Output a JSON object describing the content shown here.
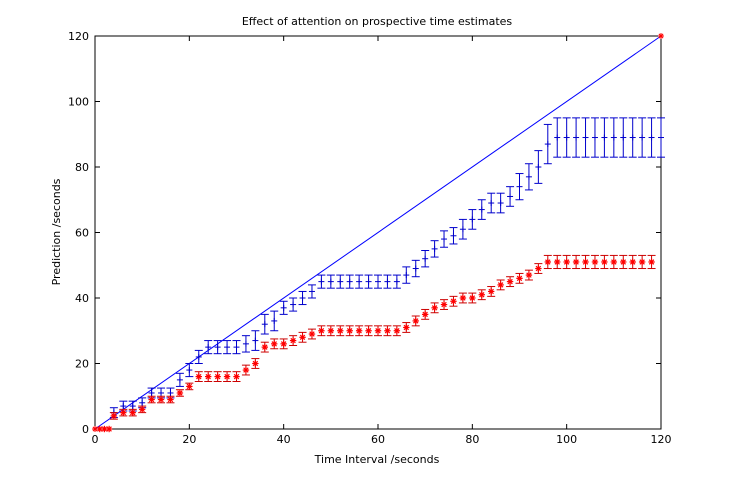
{
  "chart_data": {
    "type": "line",
    "title": "Effect of attention on prospective time estimates",
    "xlabel": "Time Interval /seconds",
    "ylabel": "Prediction /seconds",
    "xlim": [
      0,
      120
    ],
    "ylim": [
      0,
      120
    ],
    "xticks": [
      "0",
      "20",
      "40",
      "60",
      "80",
      "100",
      "120"
    ],
    "yticks": [
      "0",
      "20",
      "40",
      "60",
      "80",
      "100",
      "120"
    ],
    "grid": false,
    "reference_line": {
      "x": [
        0,
        120
      ],
      "y": [
        0,
        120
      ],
      "color": "#0000ff",
      "marker_color": "#ff0000"
    },
    "series": [
      {
        "color": "#0000cc",
        "marker": "+",
        "x": [
          2,
          4,
          6,
          8,
          10,
          12,
          14,
          16,
          18,
          20,
          22,
          24,
          26,
          28,
          30,
          32,
          34,
          36,
          38,
          40,
          42,
          44,
          46,
          48,
          50,
          52,
          54,
          56,
          58,
          60,
          62,
          64,
          66,
          68,
          70,
          72,
          74,
          76,
          78,
          80,
          82,
          84,
          86,
          88,
          90,
          92,
          94,
          96,
          98,
          100,
          102,
          104,
          106,
          108,
          110,
          112,
          114,
          116,
          118,
          120
        ],
        "y": [
          0,
          5,
          7,
          7,
          8,
          11,
          11,
          11,
          15,
          18,
          22,
          25,
          25,
          25,
          25,
          26,
          27,
          32,
          33,
          37,
          38,
          40,
          42,
          45,
          45,
          45,
          45,
          45,
          45,
          45,
          45,
          45,
          47,
          49,
          52,
          55,
          58,
          59,
          61,
          64,
          67,
          69,
          69,
          71,
          74,
          77,
          80,
          87,
          89,
          89,
          89,
          89,
          89,
          89,
          89,
          89,
          89,
          89,
          89,
          89
        ],
        "err": [
          0,
          1.5,
          1.5,
          1.5,
          1.5,
          1.5,
          1.5,
          1.5,
          2,
          2,
          2,
          2,
          2,
          2,
          2,
          2.5,
          3,
          3,
          3,
          2,
          2,
          2,
          2,
          2,
          2,
          2,
          2,
          2,
          2,
          2,
          2,
          2,
          2.5,
          2.5,
          2.5,
          2.5,
          2.5,
          2.5,
          3,
          3,
          3,
          3,
          3,
          3,
          4,
          4,
          5,
          6,
          6,
          6,
          6,
          6,
          6,
          6,
          6,
          6,
          6,
          6,
          6,
          6
        ]
      },
      {
        "color": "#ff0000",
        "error_color": "#cc0000",
        "marker": "*",
        "x": [
          1,
          2,
          3,
          4,
          6,
          8,
          10,
          12,
          14,
          16,
          18,
          20,
          22,
          24,
          26,
          28,
          30,
          32,
          34,
          36,
          38,
          40,
          42,
          44,
          46,
          48,
          50,
          52,
          54,
          56,
          58,
          60,
          62,
          64,
          66,
          68,
          70,
          72,
          74,
          76,
          78,
          80,
          82,
          84,
          86,
          88,
          90,
          92,
          94,
          96,
          98,
          100,
          102,
          104,
          106,
          108,
          110,
          112,
          114,
          116,
          118
        ],
        "y": [
          0,
          0,
          0,
          4,
          5,
          5,
          6,
          9,
          9,
          9,
          11,
          13,
          16,
          16,
          16,
          16,
          16,
          18,
          20,
          25,
          26,
          26,
          27,
          28,
          29,
          30,
          30,
          30,
          30,
          30,
          30,
          30,
          30,
          30,
          31,
          33,
          35,
          37,
          38,
          39,
          40,
          40,
          41,
          42,
          44,
          45,
          46,
          47,
          49,
          51,
          51,
          51,
          51,
          51,
          51,
          51,
          51,
          51,
          51,
          51,
          51
        ],
        "err": [
          0,
          0,
          0,
          1,
          1,
          1,
          1,
          1,
          1,
          1,
          1,
          1,
          1.5,
          1.5,
          1.5,
          1.5,
          1.5,
          1.5,
          1.5,
          1.5,
          1.5,
          1.5,
          1.5,
          1.5,
          1.5,
          1.5,
          1.5,
          1.5,
          1.5,
          1.5,
          1.5,
          1.5,
          1.5,
          1.5,
          1.5,
          1.5,
          1.5,
          1.5,
          1.5,
          1.5,
          1.5,
          1.5,
          1.5,
          1.5,
          1.5,
          1.5,
          1.5,
          1.5,
          1.5,
          2,
          2,
          2,
          2,
          2,
          2,
          2,
          2,
          2,
          2,
          2,
          2
        ]
      }
    ]
  }
}
